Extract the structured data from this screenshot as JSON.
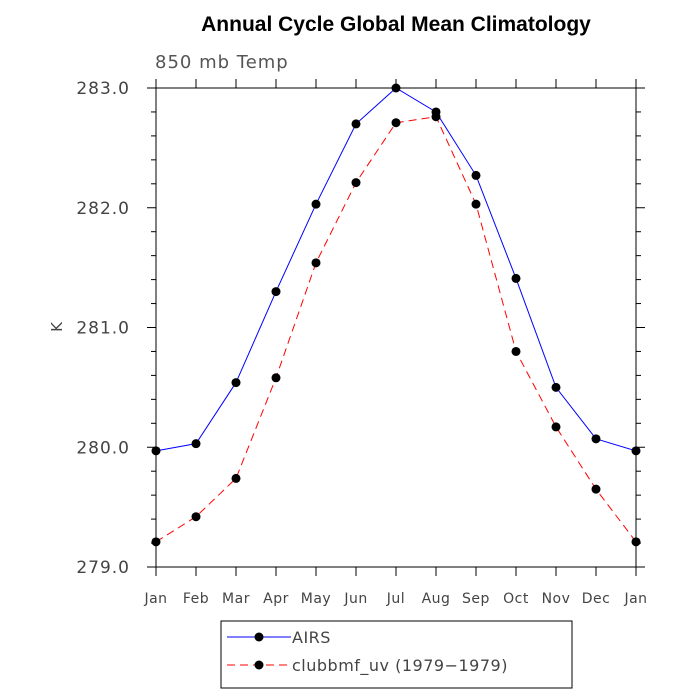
{
  "chart_data": {
    "type": "line",
    "title": "Annual Cycle Global Mean Climatology",
    "subtitle": "850 mb Temp",
    "xlabel": "",
    "ylabel": "K",
    "ylim": [
      279.0,
      283.0
    ],
    "yticks": [
      "279.0",
      "280.0",
      "281.0",
      "282.0",
      "283.0"
    ],
    "categories": [
      "Jan",
      "Feb",
      "Mar",
      "Apr",
      "May",
      "Jun",
      "Jul",
      "Aug",
      "Sep",
      "Oct",
      "Nov",
      "Dec",
      "Jan"
    ],
    "grid": false,
    "legend_position": "bottom",
    "series": [
      {
        "name": "AIRS",
        "color": "#0000ff",
        "dash": "solid",
        "values": [
          279.97,
          280.03,
          280.54,
          281.3,
          282.03,
          282.7,
          283.0,
          282.8,
          282.27,
          281.41,
          280.5,
          280.07,
          279.97
        ]
      },
      {
        "name": "clubbmf_uv (1979−1979)",
        "color": "#ff0000",
        "dash": "dashed",
        "values": [
          279.21,
          279.42,
          279.74,
          280.58,
          281.54,
          282.21,
          282.71,
          282.76,
          282.03,
          280.8,
          280.17,
          279.65,
          279.21
        ]
      }
    ]
  }
}
